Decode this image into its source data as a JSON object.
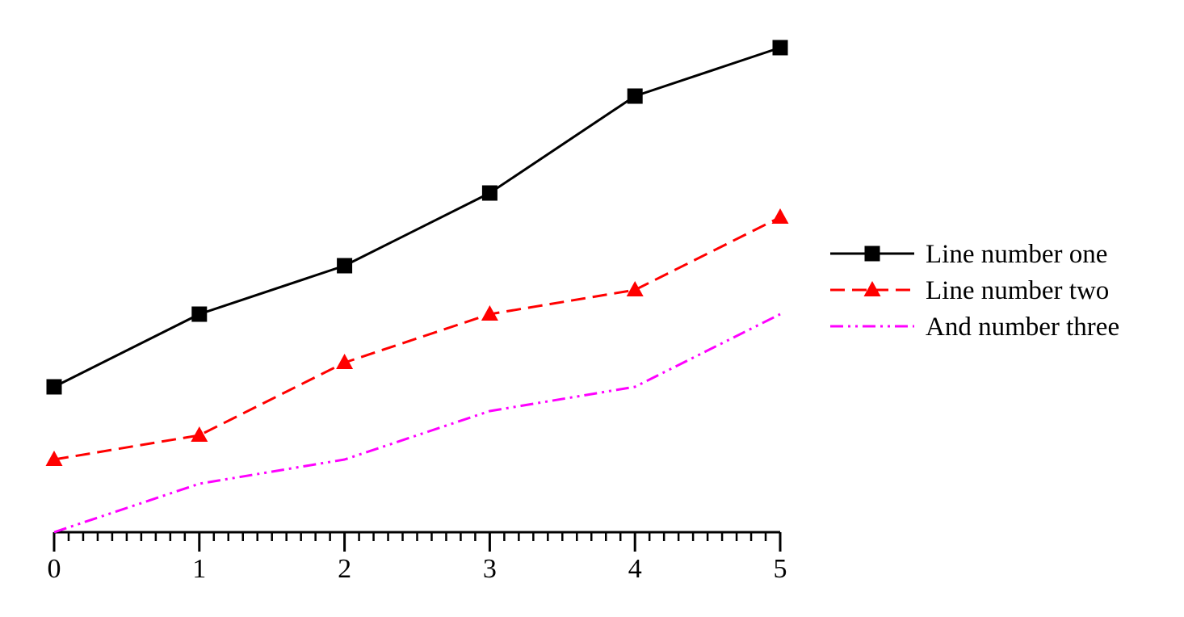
{
  "chart_data": {
    "type": "line",
    "title": "",
    "xlabel": "",
    "ylabel": "",
    "x": [
      0,
      1,
      2,
      3,
      4,
      5
    ],
    "xlim": [
      0,
      5
    ],
    "ylim": [
      0,
      20
    ],
    "x_ticks": [
      "0",
      "1",
      "2",
      "3",
      "4",
      "5"
    ],
    "minor_ticks_per_unit": 10,
    "show_y_axis": false,
    "grid": false,
    "legend_position": "right",
    "series": [
      {
        "name": "Line number one",
        "values": [
          6,
          9,
          11,
          14,
          18,
          20
        ],
        "color": "#000000",
        "dash": "solid",
        "marker": "square"
      },
      {
        "name": "Line number two",
        "values": [
          3,
          4,
          7,
          9,
          10,
          13
        ],
        "color": "#ff0000",
        "dash": "dashed",
        "marker": "triangle"
      },
      {
        "name": "And number three",
        "values": [
          0,
          2,
          3,
          5,
          6,
          9
        ],
        "color": "#ff00ff",
        "dash": "dash-dot-dot",
        "marker": "none"
      }
    ]
  }
}
